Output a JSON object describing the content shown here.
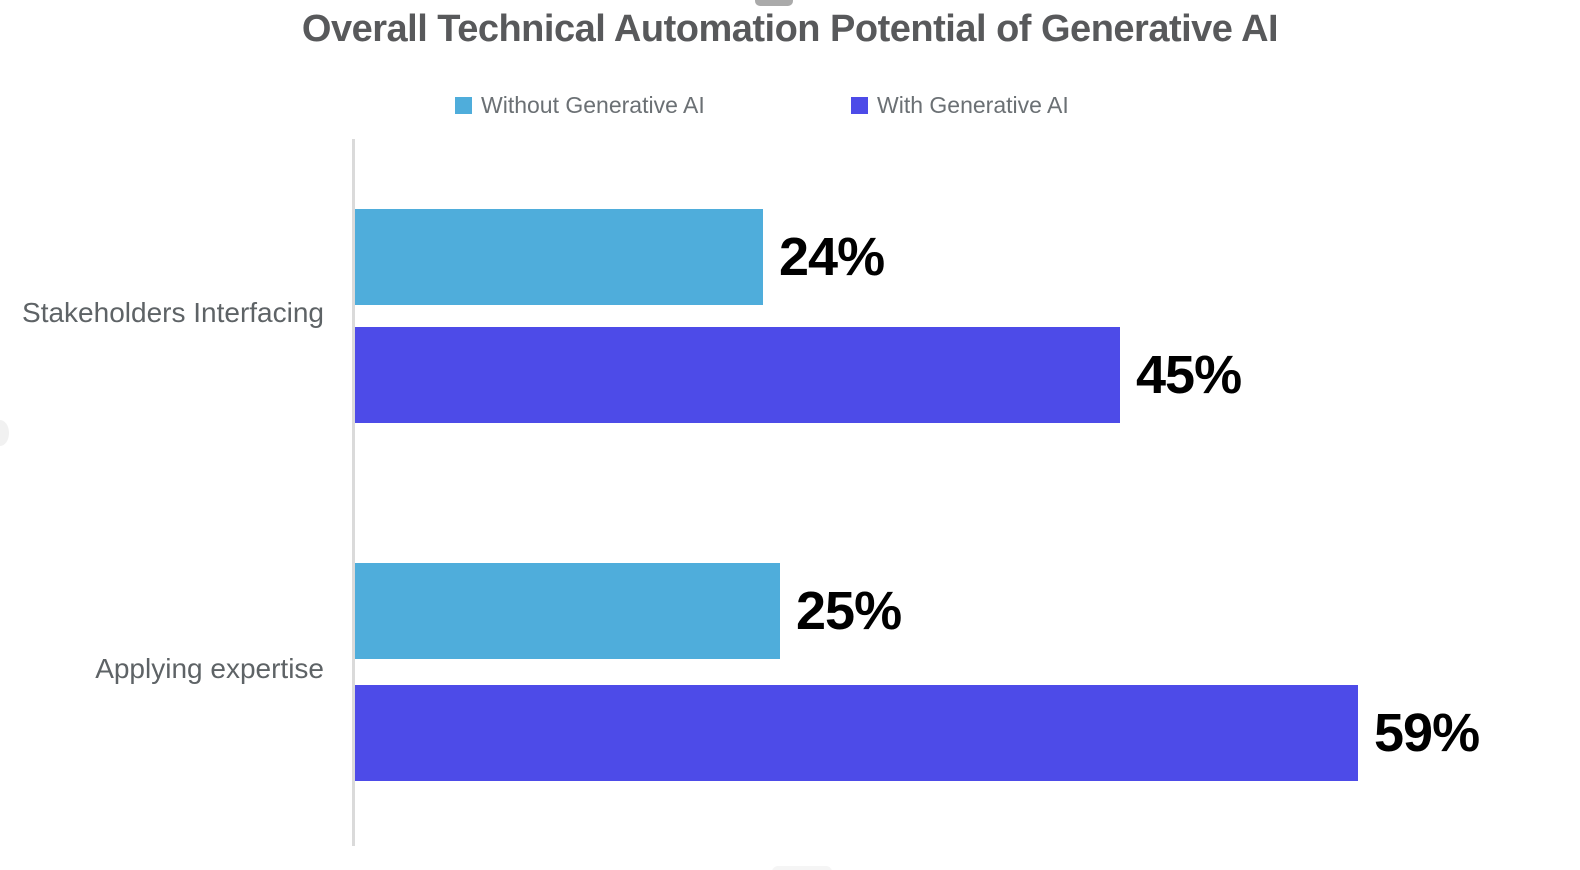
{
  "title": "Overall Technical Automation Potential of Generative AI",
  "legend": [
    {
      "label": "Without Generative AI",
      "color": "#4FADDB"
    },
    {
      "label": "With Generative AI",
      "color": "#4D4BE8"
    }
  ],
  "axis": {
    "baseline_color": "#dadada",
    "x_axis_visible": false
  },
  "chart_data": {
    "type": "bar",
    "orientation": "horizontal",
    "title": "Overall Technical Automation Potential of Generative AI",
    "categories": [
      "Stakeholders Interfacing",
      "Applying expertise"
    ],
    "series": [
      {
        "name": "Without Generative AI",
        "color": "#4FADDB",
        "values": [
          24,
          25
        ]
      },
      {
        "name": "With Generative AI",
        "color": "#4D4BE8",
        "values": [
          45,
          59
        ]
      }
    ],
    "value_labels": {
      "without_stakeholders": "24%",
      "with_stakeholders": "45%",
      "without_applying": "25%",
      "with_applying": "59%"
    },
    "xlim": [
      0,
      60
    ],
    "grid": false,
    "legend_position": "top",
    "value_label_color": "#000000"
  }
}
